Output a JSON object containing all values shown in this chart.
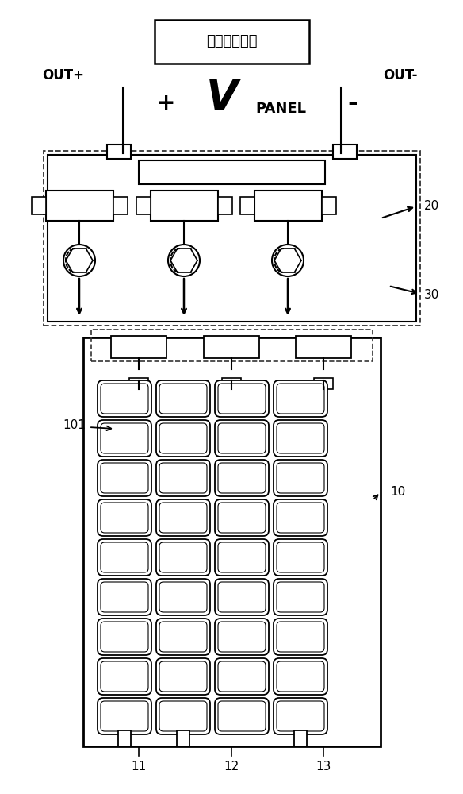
{
  "bg_color": "#ffffff",
  "line_color": "#000000",
  "dashed_color": "#555555",
  "label_box_text": "电压电流输出",
  "label_vpanel": "V",
  "label_panel_sub": "PANEL",
  "label_out_plus": "OUT+",
  "label_out_minus": "OUT-",
  "label_plus": "+",
  "label_minus": "-",
  "label_20": "20",
  "label_30": "30",
  "label_10": "10",
  "label_101": "101",
  "label_11": "11",
  "label_12": "12",
  "label_13": "13",
  "num_cols": 3,
  "num_rows": 9,
  "panel_cols": 4
}
